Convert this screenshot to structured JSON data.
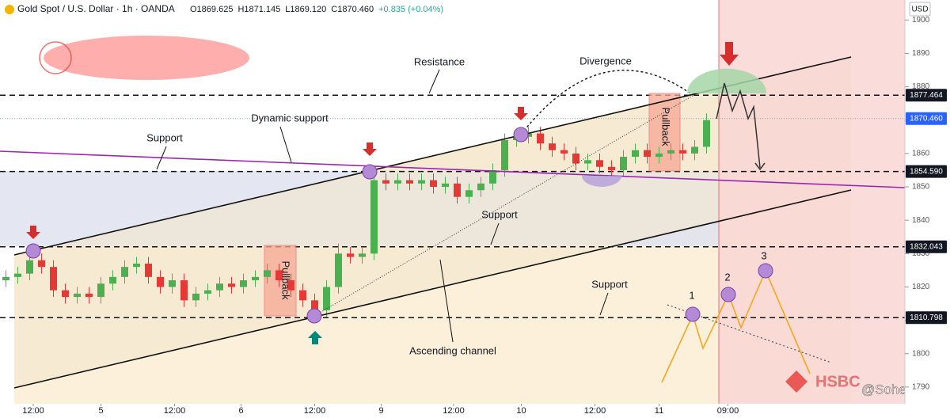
{
  "chart_data": {
    "type": "candlestick",
    "title": "Gold Spot / U.S. Dollar · 1h · OANDA",
    "ohlc": [
      "O1869.625",
      "H1871.145",
      "L1869.120",
      "C1870.460",
      "+0.835 (+0.04%)"
    ],
    "currency": "USD",
    "x": [
      0.5,
      1.5,
      2.5,
      3.5,
      4.5,
      5.5,
      6.5,
      7.5,
      8.5,
      9.5,
      10.5,
      11.5,
      12.5,
      13.5,
      14.5,
      15.5,
      16.5,
      17.5,
      18.5,
      19.5,
      20.5,
      21.5,
      22.5,
      23.5,
      24.5,
      25.5,
      26.5,
      27.5,
      28.5,
      29.5,
      30.5,
      31.5,
      32.5,
      33.5,
      34.5,
      35.5,
      36.5,
      37.5,
      38.5,
      39.5,
      40.5,
      41.5,
      42.5,
      43.5,
      44.5,
      45.5,
      46.5,
      47.5,
      48.5,
      49.5,
      50.5,
      51.5,
      52.5,
      53.5,
      54.5,
      55.5,
      56.5,
      57.5,
      58.5,
      59.5
    ],
    "open": [
      1822,
      1823,
      1824,
      1828,
      1826,
      1819,
      1817,
      1818,
      1817,
      1821,
      1823,
      1826,
      1827,
      1823,
      1820,
      1822,
      1816,
      1818,
      1819,
      1821,
      1820,
      1822,
      1823,
      1825,
      1822,
      1819,
      1816,
      1813,
      1820,
      1830,
      1829,
      1830,
      1852,
      1851,
      1852,
      1851,
      1852,
      1850,
      1851,
      1847,
      1849,
      1851,
      1855,
      1864,
      1865,
      1866,
      1863,
      1861,
      1860,
      1857,
      1858,
      1856,
      1855,
      1859,
      1861,
      1859,
      1860,
      1861,
      1860,
      1862
    ],
    "high": [
      1825,
      1826,
      1830,
      1830,
      1828,
      1821,
      1820,
      1820,
      1823,
      1825,
      1828,
      1829,
      1829,
      1825,
      1824,
      1824,
      1820,
      1821,
      1823,
      1823,
      1824,
      1825,
      1827,
      1827,
      1824,
      1821,
      1818,
      1822,
      1833,
      1832,
      1832,
      1854,
      1854,
      1854,
      1854,
      1854,
      1854,
      1853,
      1853,
      1851,
      1853,
      1857,
      1866,
      1867,
      1868,
      1868,
      1865,
      1863,
      1862,
      1860,
      1860,
      1858,
      1861,
      1863,
      1863,
      1862,
      1863,
      1863,
      1864,
      1872
    ],
    "low": [
      1820,
      1821,
      1822,
      1824,
      1817,
      1815,
      1815,
      1815,
      1815,
      1819,
      1821,
      1824,
      1821,
      1818,
      1818,
      1814,
      1814,
      1816,
      1817,
      1818,
      1818,
      1820,
      1821,
      1820,
      1817,
      1814,
      1811,
      1811,
      1818,
      1827,
      1827,
      1828,
      1849,
      1849,
      1849,
      1849,
      1848,
      1848,
      1845,
      1845,
      1847,
      1849,
      1853,
      1862,
      1863,
      1861,
      1859,
      1858,
      1855,
      1855,
      1854,
      1853,
      1853,
      1857,
      1857,
      1857,
      1858,
      1858,
      1858,
      1860
    ],
    "close": [
      1823,
      1824,
      1828,
      1826,
      1819,
      1817,
      1818,
      1817,
      1821,
      1823,
      1826,
      1827,
      1823,
      1820,
      1822,
      1816,
      1818,
      1819,
      1821,
      1820,
      1822,
      1823,
      1825,
      1822,
      1819,
      1816,
      1813,
      1820,
      1830,
      1829,
      1830,
      1852,
      1851,
      1852,
      1851,
      1852,
      1850,
      1851,
      1847,
      1849,
      1851,
      1855,
      1864,
      1865,
      1866,
      1863,
      1861,
      1860,
      1857,
      1858,
      1856,
      1855,
      1859,
      1861,
      1859,
      1860,
      1861,
      1860,
      1862,
      1870
    ],
    "up_color": "#4caf50",
    "down_color": "#e53935",
    "xlim": [
      0,
      76
    ],
    "xticks": [
      {
        "value": 2.8,
        "label": "12:00"
      },
      {
        "value": 8.5,
        "label": "5"
      },
      {
        "value": 14.7,
        "label": "12:00"
      },
      {
        "value": 20.3,
        "label": "6"
      },
      {
        "value": 26.5,
        "label": "12:00"
      },
      {
        "value": 32.1,
        "label": "9"
      },
      {
        "value": 38.2,
        "label": "12:00"
      },
      {
        "value": 43.9,
        "label": "10"
      },
      {
        "value": 50.1,
        "label": "12:00"
      },
      {
        "value": 55.5,
        "label": "11"
      },
      {
        "value": 61.3,
        "label": "09:00"
      }
    ],
    "ylim": [
      1785,
      1906
    ],
    "yticks": [
      1790,
      1800,
      1810,
      1820,
      1830,
      1840,
      1850,
      1860,
      1870,
      1880,
      1890,
      1900
    ],
    "price_labels": [
      1877.464,
      {
        "value": 1870.46,
        "label": "1870.460"
      },
      {
        "value": 1854.59,
        "label": "1854.590"
      },
      1832.043,
      1810.798
    ],
    "annotations": [
      "Resistance",
      "Divergence",
      "Dynamic support",
      "Support",
      "Support",
      "Support",
      "Pullback",
      "Pullback",
      "Ascending channel",
      "1",
      "2",
      "3",
      "HSBC",
      "@Soheer"
    ]
  }
}
